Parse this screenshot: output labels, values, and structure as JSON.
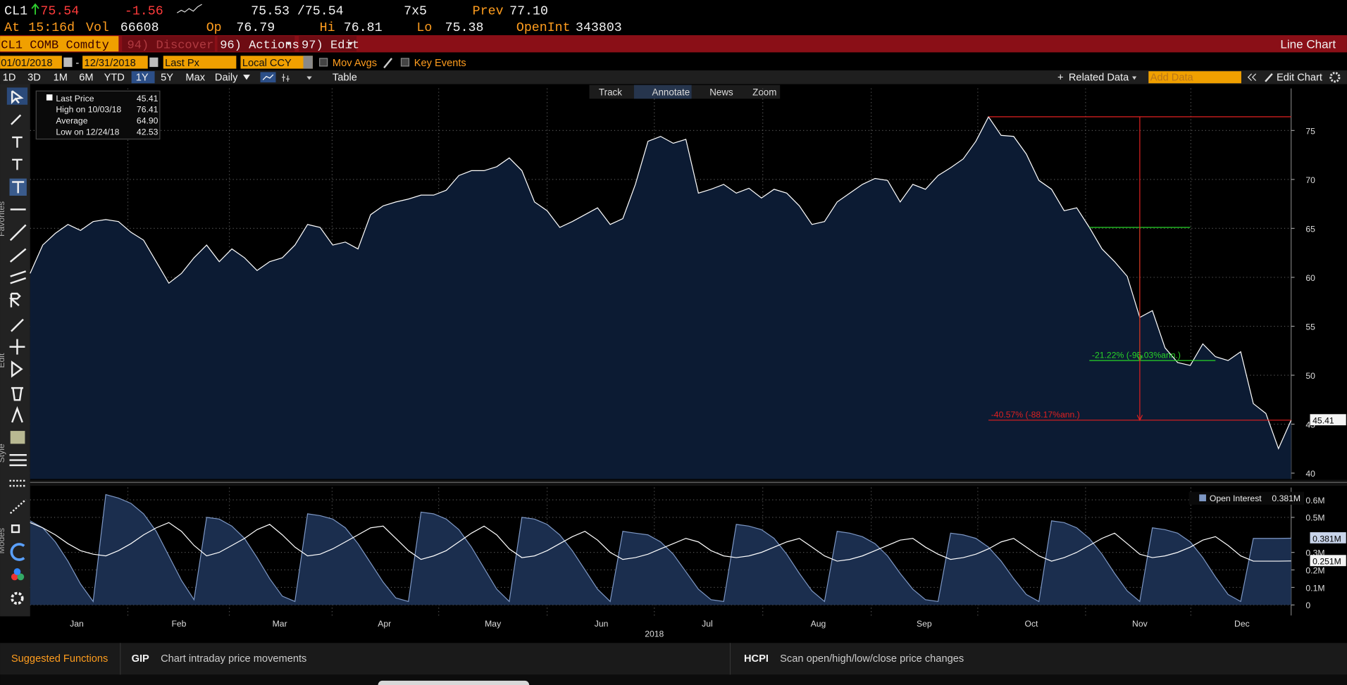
{
  "quote": {
    "ticker": "CL1",
    "last": "75.54",
    "change": "-1.56",
    "bid_ask": "75.53 /75.54",
    "size": "7x5",
    "prev_label": "Prev",
    "prev": "77.10",
    "at_label": "At",
    "time": "15:16d",
    "vol_label": "Vol",
    "vol": "66608",
    "open_label": "Op",
    "open": "76.79",
    "high_label": "Hi",
    "high": "76.81",
    "low_label": "Lo",
    "low": "75.38",
    "oi_label": "OpenInt",
    "oi": "343803"
  },
  "menu": {
    "security": "CL1 COMB Comdty",
    "items": [
      "94) Discover",
      "96) Actions",
      "97) Edit"
    ],
    "view": "Line Chart"
  },
  "settings": {
    "start": "01/01/2018",
    "end": "12/31/2018",
    "field": "Last Px",
    "currency": "Local CCY",
    "options": [
      "Mov Avgs",
      "Key Events"
    ]
  },
  "range_bar": {
    "ranges": [
      "1D",
      "3D",
      "1M",
      "6M",
      "YTD",
      "1Y",
      "5Y",
      "Max"
    ],
    "selected": 5,
    "frequency": "Daily",
    "table": "Table",
    "related": "Related Data",
    "add_data": "Add Data",
    "edit": "Edit Chart"
  },
  "tools": [
    "Track",
    "Annotate",
    "News",
    "Zoom"
  ],
  "side_labels": [
    "Favorites",
    "Edit",
    "Style",
    "Modes"
  ],
  "chart_data": [
    {
      "type": "area",
      "grid": true,
      "series": [
        {
          "name": "Last Price",
          "color": "#ffffff",
          "fill": "#0c1b33",
          "values": [
            60.4,
            63.3,
            64.5,
            65.4,
            64.8,
            65.7,
            65.9,
            65.7,
            64.6,
            63.8,
            61.6,
            59.4,
            60.4,
            62.0,
            63.3,
            61.6,
            62.9,
            62.0,
            60.7,
            61.6,
            62.0,
            63.3,
            65.4,
            65.1,
            63.3,
            63.6,
            62.9,
            66.4,
            67.3,
            67.7,
            68.0,
            68.4,
            68.4,
            68.9,
            70.4,
            70.9,
            70.9,
            71.3,
            72.2,
            70.9,
            67.7,
            66.8,
            65.1,
            65.7,
            66.4,
            67.1,
            65.4,
            66.0,
            69.5,
            73.9,
            74.4,
            73.7,
            74.1,
            68.6,
            69.0,
            69.5,
            68.6,
            69.1,
            68.1,
            69.0,
            68.6,
            67.3,
            65.4,
            65.7,
            67.7,
            68.6,
            69.5,
            70.1,
            69.9,
            67.7,
            69.5,
            69.0,
            70.4,
            71.2,
            72.1,
            73.9,
            76.4,
            74.5,
            74.4,
            72.6,
            69.9,
            69.0,
            66.8,
            67.1,
            65.1,
            62.9,
            61.6,
            60.1,
            55.9,
            56.6,
            52.8,
            51.3,
            51.0,
            53.2,
            51.9,
            51.5,
            52.4,
            47.1,
            46.1,
            42.5,
            45.41
          ]
        }
      ],
      "xlim": [
        0,
        100
      ],
      "ylim": [
        39.4,
        79.3
      ],
      "yticks": [
        40,
        45,
        50,
        55,
        60,
        65,
        70,
        75
      ],
      "legend": [
        {
          "label": "Last Price",
          "value": "45.41"
        },
        {
          "label": "High on 10/03/18",
          "value": "76.41"
        },
        {
          "label": "Average",
          "value": "64.90"
        },
        {
          "label": "Low on 12/24/18",
          "value": "42.53"
        }
      ],
      "annotations": [
        {
          "text": "-21.22% (-95.03%ann.)",
          "color": "#27d427"
        },
        {
          "text": "-40.57% (-88.17%ann.)",
          "color": "#e02020"
        }
      ]
    },
    {
      "type": "area",
      "grid": true,
      "series": [
        {
          "name": "Open Interest",
          "color": "#7d97c4",
          "fill": "#1b2e4e",
          "last_label": "0.381M",
          "values": [
            0.48,
            0.44,
            0.36,
            0.25,
            0.12,
            0.02,
            0.63,
            0.61,
            0.58,
            0.52,
            0.42,
            0.28,
            0.14,
            0.03,
            0.5,
            0.49,
            0.45,
            0.38,
            0.27,
            0.15,
            0.05,
            0.02,
            0.52,
            0.51,
            0.49,
            0.44,
            0.35,
            0.24,
            0.13,
            0.04,
            0.02,
            0.53,
            0.52,
            0.49,
            0.43,
            0.33,
            0.21,
            0.09,
            0.02,
            0.5,
            0.49,
            0.46,
            0.4,
            0.31,
            0.2,
            0.09,
            0.02,
            0.42,
            0.41,
            0.4,
            0.36,
            0.29,
            0.19,
            0.09,
            0.03,
            0.02,
            0.46,
            0.45,
            0.43,
            0.38,
            0.29,
            0.18,
            0.08,
            0.02,
            0.42,
            0.41,
            0.39,
            0.35,
            0.28,
            0.18,
            0.09,
            0.03,
            0.02,
            0.41,
            0.4,
            0.38,
            0.33,
            0.25,
            0.15,
            0.06,
            0.02,
            0.48,
            0.47,
            0.44,
            0.38,
            0.29,
            0.18,
            0.08,
            0.02,
            0.44,
            0.43,
            0.41,
            0.36,
            0.27,
            0.16,
            0.06,
            0.02,
            0.38,
            0.38,
            0.38,
            0.381
          ]
        },
        {
          "color": "#ffffff",
          "last_label": "0.251M",
          "values": [
            0.47,
            0.44,
            0.4,
            0.35,
            0.31,
            0.29,
            0.28,
            0.31,
            0.35,
            0.4,
            0.44,
            0.47,
            0.42,
            0.34,
            0.28,
            0.3,
            0.34,
            0.38,
            0.43,
            0.46,
            0.4,
            0.33,
            0.28,
            0.29,
            0.32,
            0.36,
            0.4,
            0.44,
            0.45,
            0.38,
            0.31,
            0.26,
            0.28,
            0.31,
            0.36,
            0.41,
            0.45,
            0.4,
            0.32,
            0.27,
            0.28,
            0.31,
            0.35,
            0.39,
            0.42,
            0.37,
            0.3,
            0.26,
            0.27,
            0.29,
            0.32,
            0.35,
            0.38,
            0.36,
            0.31,
            0.28,
            0.27,
            0.28,
            0.3,
            0.33,
            0.36,
            0.38,
            0.33,
            0.28,
            0.25,
            0.26,
            0.28,
            0.31,
            0.34,
            0.37,
            0.38,
            0.33,
            0.29,
            0.26,
            0.27,
            0.29,
            0.32,
            0.36,
            0.38,
            0.33,
            0.28,
            0.25,
            0.27,
            0.3,
            0.34,
            0.38,
            0.41,
            0.35,
            0.29,
            0.27,
            0.28,
            0.3,
            0.33,
            0.37,
            0.39,
            0.34,
            0.28,
            0.25,
            0.25,
            0.25,
            0.251
          ]
        }
      ],
      "xlim": [
        0,
        100
      ],
      "xticks": [
        {
          "value": 3.7,
          "label": "Jan"
        },
        {
          "value": 11.8,
          "label": "Feb"
        },
        {
          "value": 19.8,
          "label": "Mar"
        },
        {
          "value": 28.1,
          "label": "Apr"
        },
        {
          "value": 36.7,
          "label": "May"
        },
        {
          "value": 45.3,
          "label": "Jun"
        },
        {
          "value": 53.7,
          "label": "Jul"
        },
        {
          "value": 62.5,
          "label": "Aug"
        },
        {
          "value": 70.9,
          "label": "Sep"
        },
        {
          "value": 79.4,
          "label": "Oct"
        },
        {
          "value": 88.0,
          "label": "Nov"
        },
        {
          "value": 96.1,
          "label": "Dec"
        }
      ],
      "xlabel": "2018",
      "ylim": [
        -0.06,
        0.67
      ],
      "yticks": [
        0,
        {
          "value": 0.1,
          "label": "0.1M"
        },
        {
          "value": 0.2,
          "label": "0.2M"
        },
        {
          "value": 0.3,
          "label": "0.3M"
        },
        {
          "value": 0.5,
          "label": "0.5M"
        },
        {
          "value": 0.6,
          "label": "0.6M"
        }
      ]
    }
  ],
  "footer": {
    "title": "Suggested Functions",
    "suggestions": [
      {
        "code": "GIP",
        "text": "Chart intraday price movements"
      },
      {
        "code": "HCPI",
        "text": "Scan open/high/low/close price changes"
      }
    ]
  }
}
